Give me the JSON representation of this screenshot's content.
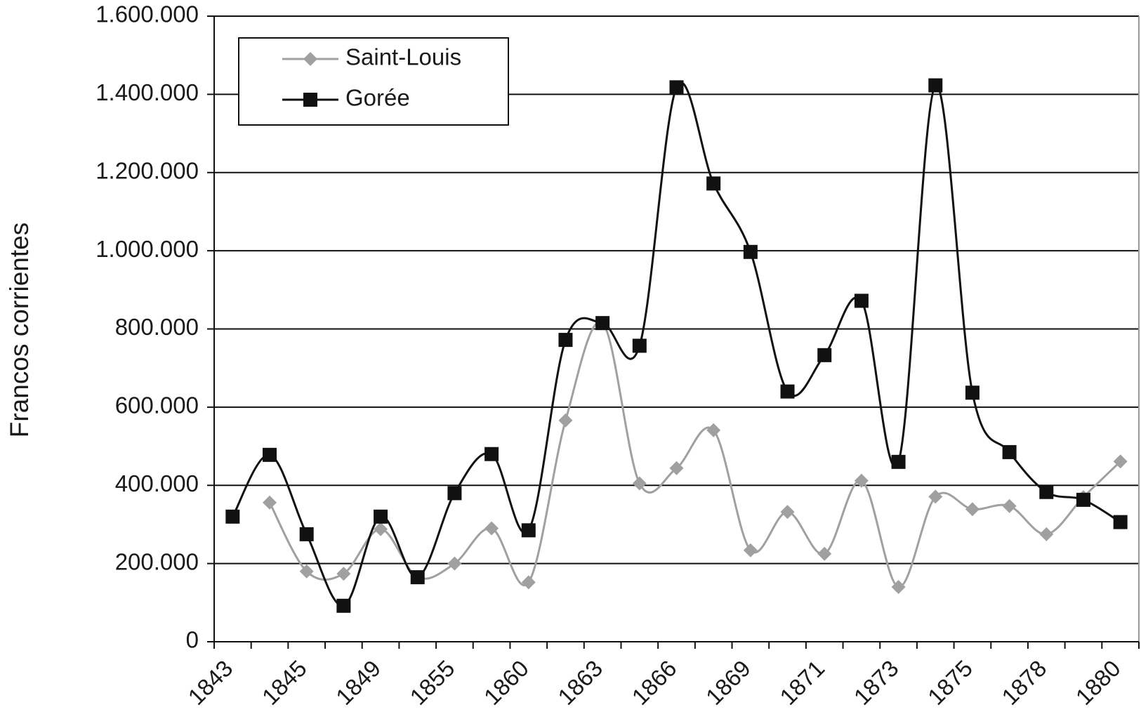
{
  "chart_data": {
    "type": "line",
    "y_label": "Francos corrientes",
    "categories": [
      "1843",
      null,
      "1845",
      null,
      "1849",
      null,
      "1855",
      null,
      "1860",
      null,
      "1863",
      null,
      "1866",
      null,
      "1869",
      null,
      "1871",
      null,
      "1873",
      null,
      "1875",
      null,
      "1878",
      null,
      "1880"
    ],
    "series": [
      {
        "name": "Saint-Louis",
        "color": "#a0a0a0",
        "marker": "diamond",
        "values": [
          null,
          356000,
          180000,
          174000,
          288000,
          165000,
          200000,
          290000,
          152000,
          566000,
          815000,
          405000,
          444000,
          541000,
          234000,
          332000,
          225000,
          412000,
          140000,
          371000,
          339000,
          347000,
          275000,
          370000,
          461000
        ]
      },
      {
        "name": "Gorée",
        "color": "#111111",
        "marker": "square",
        "values": [
          320000,
          478000,
          275000,
          92000,
          320000,
          165000,
          380000,
          480000,
          285000,
          772000,
          815000,
          757000,
          1418000,
          1172000,
          997000,
          640000,
          733000,
          872000,
          460000,
          1423000,
          637000,
          485000,
          383000,
          363000,
          306000
        ]
      }
    ],
    "ylim": [
      0,
      1600000
    ],
    "yticks": [
      0,
      {
        "value": 200000,
        "label": "200.000"
      },
      {
        "value": 400000,
        "label": "400.000"
      },
      {
        "value": 600000,
        "label": "600.000"
      },
      {
        "value": 800000,
        "label": "800.000"
      },
      {
        "value": 1000000,
        "label": "1.000.000"
      },
      {
        "value": 1200000,
        "label": "1.200.000"
      },
      {
        "value": 1400000,
        "label": "1.400.000"
      },
      {
        "value": 1600000,
        "label": "1.600.000"
      }
    ],
    "grid": true,
    "legend": "top-left"
  }
}
